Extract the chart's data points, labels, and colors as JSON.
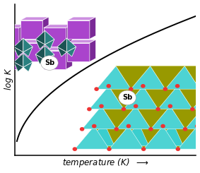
{
  "background_color": "#ffffff",
  "curve_color": "#000000",
  "curve_linewidth": 1.4,
  "xlabel": "temperature (K)",
  "ylabel": "log K",
  "xlabel_fontsize": 8.5,
  "ylabel_fontsize": 8.5,
  "purple_face": "#AA44CC",
  "purple_dark": "#882299",
  "purple_light": "#CC66EE",
  "teal_face": "#2A8080",
  "teal_dark": "#1A5555",
  "teal_light": "#3AADAD",
  "olive_face": "#7A7A00",
  "olive_dark": "#555500",
  "olive_light": "#A0A020",
  "cyan_face": "#30C0C0",
  "cyan_dark": "#208080",
  "red_dot": "#EE3333",
  "sb_circle_color": "#ffffff",
  "sb_text_color": "#000000",
  "sb_fontsize": 7
}
